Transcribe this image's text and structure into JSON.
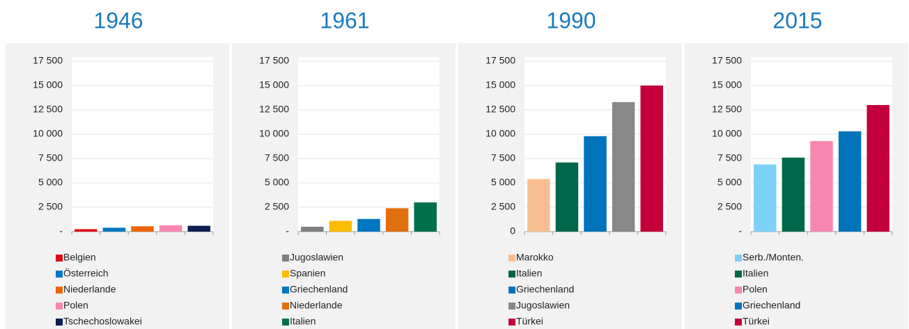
{
  "chart_data": [
    {
      "type": "bar",
      "title": "1946",
      "categories": [
        "Belgien",
        "Österreich",
        "Niederlande",
        "Polen",
        "Tschechoslowakei"
      ],
      "values": [
        250,
        400,
        550,
        650,
        600
      ],
      "colors": [
        "#e30613",
        "#0077c0",
        "#ec6608",
        "#f787b0",
        "#0d1f4f"
      ],
      "ylim": [
        0,
        17500
      ],
      "yticks": [
        {
          "value": 0,
          "label": "-"
        },
        {
          "value": 2500,
          "label": "2 500"
        },
        {
          "value": 5000,
          "label": "5 000"
        },
        {
          "value": 7500,
          "label": "7 500"
        },
        {
          "value": 10000,
          "label": "10 000"
        },
        {
          "value": 12500,
          "label": "12 500"
        },
        {
          "value": 15000,
          "label": "15 000"
        },
        {
          "value": 17500,
          "label": "17 500"
        }
      ],
      "grid": true
    },
    {
      "type": "bar",
      "title": "1961",
      "categories": [
        "Jugoslawien",
        "Spanien",
        "Griechenland",
        "Niederlande",
        "Italien"
      ],
      "values": [
        500,
        1100,
        1300,
        2400,
        3000
      ],
      "colors": [
        "#808080",
        "#fbbb00",
        "#0077c0",
        "#e3700e",
        "#00704a"
      ],
      "ylim": [
        0,
        17500
      ],
      "yticks": [
        {
          "value": 0,
          "label": "-"
        },
        {
          "value": 2500,
          "label": "2 500"
        },
        {
          "value": 5000,
          "label": "5 000"
        },
        {
          "value": 7500,
          "label": "7 500"
        },
        {
          "value": 10000,
          "label": "10 000"
        },
        {
          "value": 12500,
          "label": "12 500"
        },
        {
          "value": 15000,
          "label": "15 000"
        },
        {
          "value": 17500,
          "label": "17 500"
        }
      ],
      "grid": true
    },
    {
      "type": "bar",
      "title": "1990",
      "categories": [
        "Marokko",
        "Italien",
        "Griechenland",
        "Jugoslawien",
        "Türkei"
      ],
      "values": [
        5400,
        7100,
        9800,
        13300,
        15000
      ],
      "colors": [
        "#f7bf91",
        "#00674a",
        "#0073bb",
        "#888888",
        "#c4003c"
      ],
      "ylim": [
        0,
        17500
      ],
      "yticks": [
        0,
        {
          "value": 2500,
          "label": "2 500"
        },
        {
          "value": 5000,
          "label": "5 000"
        },
        {
          "value": 7500,
          "label": "7 500"
        },
        {
          "value": 10000,
          "label": "10 000"
        },
        {
          "value": 12500,
          "label": "12 500"
        },
        {
          "value": 15000,
          "label": "15 000"
        },
        {
          "value": 17500,
          "label": "17 500"
        }
      ],
      "grid": true
    },
    {
      "type": "bar",
      "title": "2015",
      "categories": [
        "Serb./Monten.",
        "Italien",
        "Polen",
        "Griechenland",
        "Türkei"
      ],
      "values": [
        6900,
        7600,
        9300,
        10300,
        13000
      ],
      "colors": [
        "#7fd0f7",
        "#00674a",
        "#f787b0",
        "#0073bb",
        "#c4003c"
      ],
      "ylim": [
        0,
        17500
      ],
      "yticks": [
        {
          "value": 0,
          "label": "-"
        },
        {
          "value": 2500,
          "label": "2 500"
        },
        {
          "value": 5000,
          "label": "5 000"
        },
        {
          "value": 7500,
          "label": "7 500"
        },
        {
          "value": 10000,
          "label": "10 000"
        },
        {
          "value": 12500,
          "label": "12 500"
        },
        {
          "value": 15000,
          "label": "15 000"
        },
        {
          "value": 17500,
          "label": "17 500"
        }
      ],
      "grid": true
    }
  ]
}
